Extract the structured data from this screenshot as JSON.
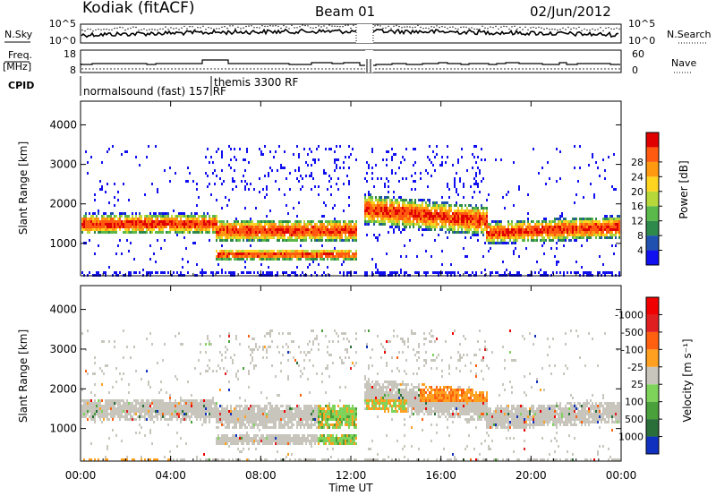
{
  "header": {
    "station": "Kodiak (fitACF)",
    "beam": "Beam 01",
    "date": "02/Jun/2012"
  },
  "status_panels": {
    "nsky_label": "N.Sky",
    "nsky_ticks": [
      "10^5",
      "10^0"
    ],
    "nsearch_label": "N.Search",
    "nsearch_ticks": [
      "10^5",
      "10^0"
    ],
    "freq_label_1": "Freq.",
    "freq_label_2": "[MHz]",
    "freq_ticks": [
      "18",
      "8"
    ],
    "nave_label": "Nave",
    "nave_ticks": [
      "60",
      "0"
    ],
    "cpid_label": "CPID",
    "cpid_1": "normalsound (fast) 157 RF",
    "cpid_2": "themis 3300 RF"
  },
  "axes": {
    "ylabel": "Slant Range [km]",
    "y_ticks": [
      1000,
      2000,
      3000,
      4000
    ],
    "y_tick_labels": [
      "1000",
      "2000",
      "3000",
      "4000"
    ],
    "x_ticks": [
      0,
      4,
      8,
      12,
      16,
      20,
      24
    ],
    "x_tick_labels": [
      "00:00",
      "04:00",
      "08:00",
      "12:00",
      "16:00",
      "20:00",
      "00:00"
    ],
    "xlabel": "Time UT"
  },
  "colorbars": {
    "power": {
      "label": "Power [dB]",
      "tick_labels": [
        "4",
        "8",
        "12",
        "16",
        "20",
        "24",
        "28"
      ],
      "colors": [
        "#1010f0",
        "#2050b0",
        "#2e8a4a",
        "#5ab94a",
        "#b6d838",
        "#ffd520",
        "#ff9a10",
        "#ff5a10",
        "#e00000"
      ]
    },
    "velocity": {
      "label": "Velocity [m s⁻¹]",
      "tick_labels": [
        "1000",
        "500",
        "100",
        "25",
        "-25",
        "-100",
        "-500",
        "-1000"
      ],
      "colors": [
        "#1030c0",
        "#2a6e3a",
        "#4aa03a",
        "#7ed35a",
        "#c8c6bc",
        "#ffa020",
        "#ff6010",
        "#e02020",
        "#f00000"
      ]
    }
  },
  "chart_data": [
    {
      "type": "heatmap",
      "title": "Power",
      "xlabel": "Time UT",
      "ylabel": "Slant Range [km]",
      "xlim": [
        0,
        24
      ],
      "ylim": [
        180,
        4600
      ],
      "colorbar": "Power [dB]",
      "colorbar_range": [
        0,
        30
      ],
      "data_gap": [
        12.25,
        12.55
      ],
      "bands": [
        {
          "t": [
            0.0,
            6.0
          ],
          "range_km": [
            1250,
            1800
          ],
          "peak_db": 22
        },
        {
          "t": [
            6.0,
            12.25
          ],
          "range_km": [
            1050,
            1650
          ],
          "peak_db": 24
        },
        {
          "t": [
            6.0,
            12.25
          ],
          "range_km": [
            600,
            900
          ],
          "peak_db": 26
        },
        {
          "t": [
            12.55,
            18.0
          ],
          "range_km": [
            1500,
            2300
          ],
          "peak_db": 22
        },
        {
          "t": [
            18.0,
            24.0
          ],
          "range_km": [
            1000,
            1600
          ],
          "peak_db": 24
        }
      ]
    },
    {
      "type": "heatmap",
      "title": "Velocity",
      "xlabel": "Time UT",
      "ylabel": "Slant Range [km]",
      "xlim": [
        0,
        24
      ],
      "ylim": [
        180,
        4600
      ],
      "colorbar": "Velocity [m s-1]",
      "colorbar_range": [
        -1000,
        1000
      ],
      "data_gap": [
        12.25,
        12.55
      ]
    }
  ]
}
